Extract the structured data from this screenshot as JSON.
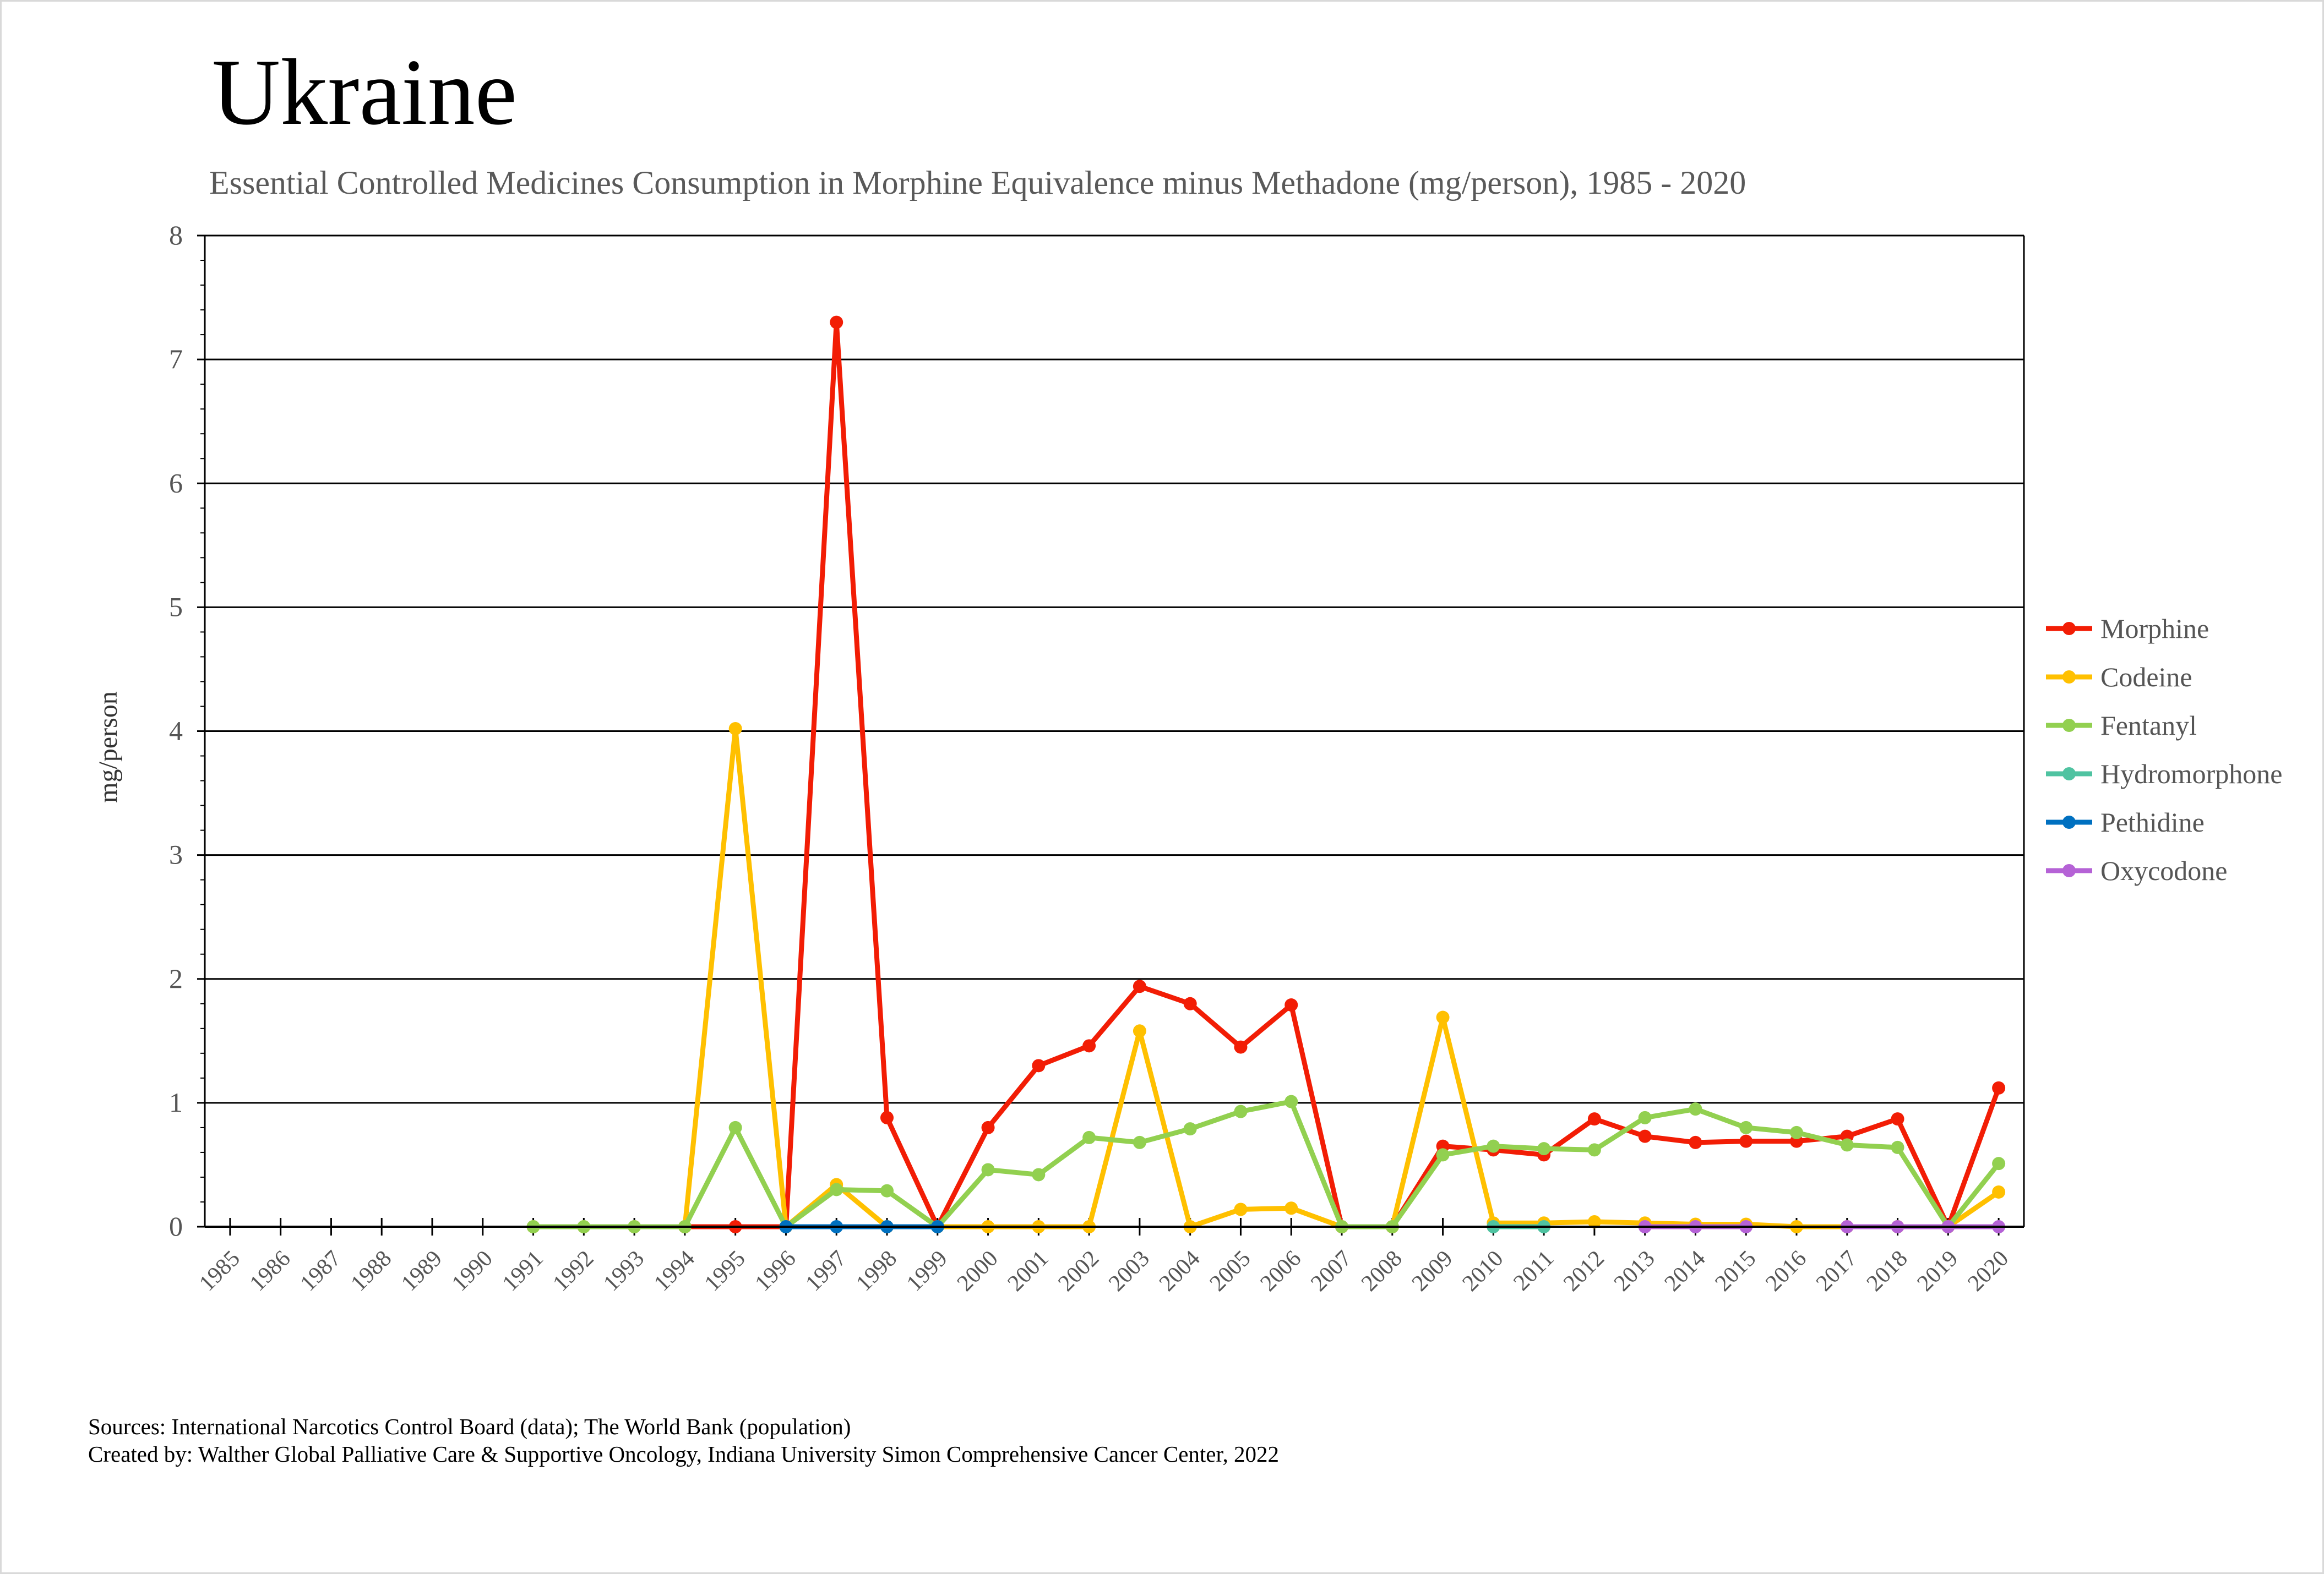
{
  "chart_data": {
    "type": "line",
    "title": "Ukraine",
    "subtitle": "Essential Controlled Medicines Consumption in Morphine Equivalence minus Methadone (mg/person), 1985 - 2020",
    "xlabel": "",
    "ylabel": "mg/person",
    "ylim": [
      0,
      8
    ],
    "yticks": [
      0,
      1,
      2,
      3,
      4,
      5,
      6,
      7,
      8
    ],
    "grid": true,
    "legend_position": "right",
    "x": [
      1985,
      1986,
      1987,
      1988,
      1989,
      1990,
      1991,
      1992,
      1993,
      1994,
      1995,
      1996,
      1997,
      1998,
      1999,
      2000,
      2001,
      2002,
      2003,
      2004,
      2005,
      2006,
      2007,
      2008,
      2009,
      2010,
      2011,
      2012,
      2013,
      2014,
      2015,
      2016,
      2017,
      2018,
      2019,
      2020
    ],
    "series": [
      {
        "name": "Morphine",
        "color": "#f21d05",
        "values": [
          null,
          null,
          null,
          null,
          null,
          null,
          null,
          null,
          null,
          0,
          0,
          0,
          7.3,
          0.88,
          0,
          0.8,
          1.3,
          1.46,
          1.94,
          1.8,
          1.45,
          1.79,
          0,
          0,
          0.65,
          0.62,
          0.58,
          0.87,
          0.73,
          0.68,
          0.69,
          0.69,
          0.73,
          0.87,
          0,
          1.12
        ]
      },
      {
        "name": "Codeine",
        "color": "#ffc000",
        "values": [
          null,
          null,
          null,
          null,
          null,
          null,
          0,
          0,
          0,
          0,
          4.02,
          0,
          0.34,
          0,
          0,
          0,
          0,
          0,
          1.58,
          0,
          0.14,
          0.15,
          0,
          0,
          1.69,
          0.03,
          0.03,
          0.04,
          0.03,
          0.02,
          0.02,
          0,
          0,
          0,
          0,
          0.28
        ]
      },
      {
        "name": "Fentanyl",
        "color": "#92d050",
        "values": [
          null,
          null,
          null,
          null,
          null,
          null,
          0,
          0,
          0,
          0,
          0.8,
          0,
          0.3,
          0.29,
          0,
          0.46,
          0.42,
          0.72,
          0.68,
          0.79,
          0.93,
          1.01,
          0,
          0,
          0.58,
          0.65,
          0.63,
          0.62,
          0.88,
          0.95,
          0.8,
          0.76,
          0.66,
          0.64,
          0,
          0.51
        ]
      },
      {
        "name": "Hydromorphone",
        "color": "#4fc3a1",
        "values": [
          null,
          null,
          null,
          null,
          null,
          null,
          null,
          null,
          null,
          null,
          null,
          null,
          null,
          null,
          null,
          null,
          null,
          null,
          null,
          null,
          null,
          null,
          null,
          null,
          null,
          0,
          0,
          null,
          null,
          null,
          null,
          null,
          null,
          null,
          null,
          null
        ]
      },
      {
        "name": "Pethidine",
        "color": "#0070c0",
        "values": [
          null,
          null,
          null,
          null,
          null,
          null,
          null,
          null,
          null,
          null,
          null,
          0,
          0,
          0,
          0,
          null,
          null,
          null,
          null,
          null,
          null,
          null,
          null,
          null,
          null,
          null,
          null,
          null,
          null,
          null,
          null,
          null,
          null,
          null,
          null,
          null
        ]
      },
      {
        "name": "Oxycodone",
        "color": "#b562d6",
        "values": [
          null,
          null,
          null,
          null,
          null,
          null,
          null,
          null,
          null,
          null,
          null,
          null,
          null,
          null,
          null,
          null,
          null,
          null,
          null,
          null,
          null,
          null,
          null,
          null,
          null,
          null,
          null,
          null,
          0,
          0,
          0,
          null,
          0,
          0,
          0,
          0
        ]
      }
    ]
  },
  "footer": {
    "sources": "Sources: International Narcotics Control Board (data); The World Bank (population)",
    "created_by": "Created by: Walther Global Palliative Care & Supportive Oncology, Indiana University Simon Comprehensive Cancer Center, 2022"
  }
}
